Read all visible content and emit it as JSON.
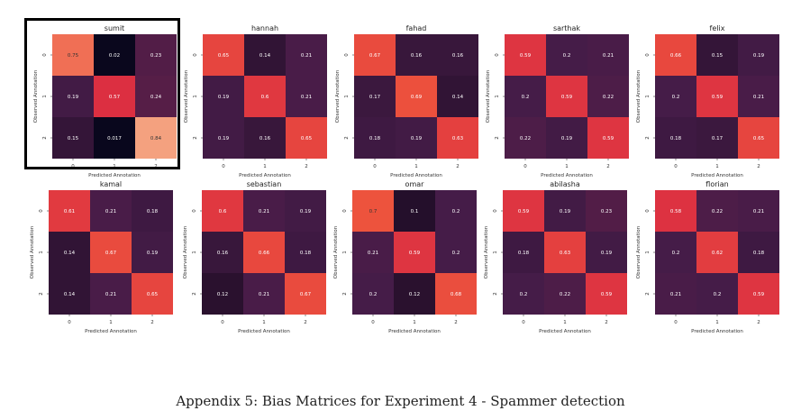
{
  "chart_data": [
    {
      "type": "heatmap",
      "title": "sumit",
      "xlabel": "Predicted Annotation",
      "ylabel": "Observed Annotation",
      "x": [
        "0",
        "1",
        "2"
      ],
      "y": [
        "0",
        "1",
        "2"
      ],
      "values": [
        [
          "0.75",
          "0.02",
          "0.23"
        ],
        [
          "0.19",
          "0.57",
          "0.24"
        ],
        [
          "0.15",
          "0.017",
          "0.84"
        ]
      ]
    },
    {
      "type": "heatmap",
      "title": "hannah",
      "xlabel": "Predicted Annotation",
      "ylabel": "Observed Annotation",
      "x": [
        "0",
        "1",
        "2"
      ],
      "y": [
        "0",
        "1",
        "2"
      ],
      "values": [
        [
          "0.65",
          "0.14",
          "0.21"
        ],
        [
          "0.19",
          "0.6",
          "0.21"
        ],
        [
          "0.19",
          "0.16",
          "0.65"
        ]
      ]
    },
    {
      "type": "heatmap",
      "title": "fahad",
      "xlabel": "Predicted Annotation",
      "ylabel": "Observed Annotation",
      "x": [
        "0",
        "1",
        "2"
      ],
      "y": [
        "0",
        "1",
        "2"
      ],
      "values": [
        [
          "0.67",
          "0.16",
          "0.16"
        ],
        [
          "0.17",
          "0.69",
          "0.14"
        ],
        [
          "0.18",
          "0.19",
          "0.63"
        ]
      ]
    },
    {
      "type": "heatmap",
      "title": "sarthak",
      "xlabel": "Predicted Annotation",
      "ylabel": "Observed Annotation",
      "x": [
        "0",
        "1",
        "2"
      ],
      "y": [
        "0",
        "1",
        "2"
      ],
      "values": [
        [
          "0.59",
          "0.2",
          "0.21"
        ],
        [
          "0.2",
          "0.59",
          "0.22"
        ],
        [
          "0.22",
          "0.19",
          "0.59"
        ]
      ]
    },
    {
      "type": "heatmap",
      "title": "felix",
      "xlabel": "Predicted Annotation",
      "ylabel": "Observed Annotation",
      "x": [
        "0",
        "1",
        "2"
      ],
      "y": [
        "0",
        "1",
        "2"
      ],
      "values": [
        [
          "0.66",
          "0.15",
          "0.19"
        ],
        [
          "0.2",
          "0.59",
          "0.21"
        ],
        [
          "0.18",
          "0.17",
          "0.65"
        ]
      ]
    },
    {
      "type": "heatmap",
      "title": "kamal",
      "xlabel": "Predicted Annotation",
      "ylabel": "Observed Annotation",
      "x": [
        "0",
        "1",
        "2"
      ],
      "y": [
        "0",
        "1",
        "2"
      ],
      "values": [
        [
          "0.61",
          "0.21",
          "0.18"
        ],
        [
          "0.14",
          "0.67",
          "0.19"
        ],
        [
          "0.14",
          "0.21",
          "0.65"
        ]
      ]
    },
    {
      "type": "heatmap",
      "title": "sebastian",
      "xlabel": "Predicted Annotation",
      "ylabel": "Observed Annotation",
      "x": [
        "0",
        "1",
        "2"
      ],
      "y": [
        "0",
        "1",
        "2"
      ],
      "values": [
        [
          "0.6",
          "0.21",
          "0.19"
        ],
        [
          "0.16",
          "0.66",
          "0.18"
        ],
        [
          "0.12",
          "0.21",
          "0.67"
        ]
      ]
    },
    {
      "type": "heatmap",
      "title": "omar",
      "xlabel": "Predicted Annotation",
      "ylabel": "Observed Annotation",
      "x": [
        "0",
        "1",
        "2"
      ],
      "y": [
        "0",
        "1",
        "2"
      ],
      "values": [
        [
          "0.7",
          "0.1",
          "0.2"
        ],
        [
          "0.21",
          "0.59",
          "0.2"
        ],
        [
          "0.2",
          "0.12",
          "0.68"
        ]
      ]
    },
    {
      "type": "heatmap",
      "title": "abilasha",
      "xlabel": "Predicted Annotation",
      "ylabel": "Observed Annotation",
      "x": [
        "0",
        "1",
        "2"
      ],
      "y": [
        "0",
        "1",
        "2"
      ],
      "values": [
        [
          "0.59",
          "0.19",
          "0.23"
        ],
        [
          "0.18",
          "0.63",
          "0.19"
        ],
        [
          "0.2",
          "0.22",
          "0.59"
        ]
      ]
    },
    {
      "type": "heatmap",
      "title": "florian",
      "xlabel": "Predicted Annotation",
      "ylabel": "Observed Annotation",
      "x": [
        "0",
        "1",
        "2"
      ],
      "y": [
        "0",
        "1",
        "2"
      ],
      "values": [
        [
          "0.58",
          "0.22",
          "0.21"
        ],
        [
          "0.2",
          "0.62",
          "0.18"
        ],
        [
          "0.21",
          "0.2",
          "0.59"
        ]
      ]
    }
  ],
  "highlighted_panel": "sumit",
  "caption": "Appendix 5: Bias Matrices for Experiment 4 - Spammer detection"
}
